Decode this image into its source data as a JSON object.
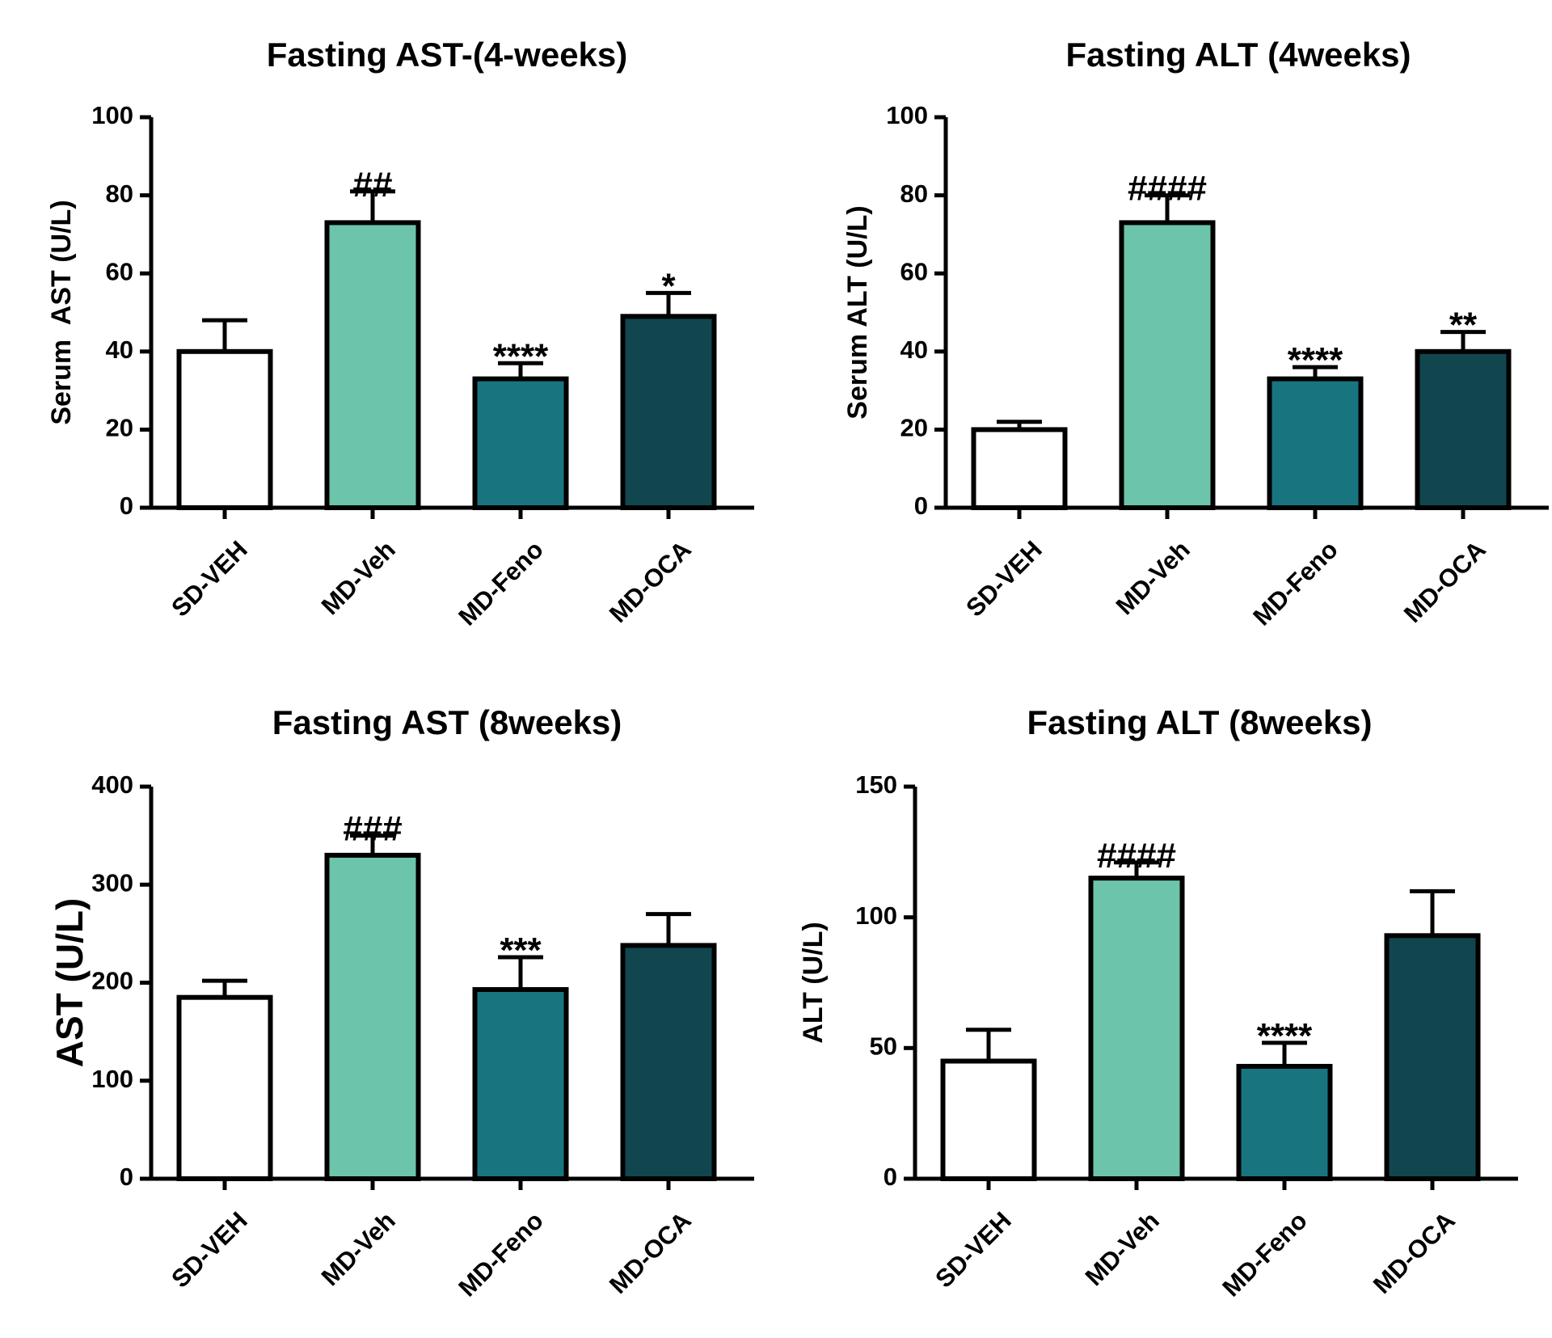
{
  "categories": [
    "SD-VEH",
    "MD-Veh",
    "MD-Feno",
    "MD-OCA"
  ],
  "bar_colors": [
    "#ffffff",
    "#6cc4aa",
    "#187580",
    "#11464f"
  ],
  "chart_data": [
    {
      "type": "bar",
      "title": "Fasting AST-(4-weeks)",
      "ylabel": "Serum  AST (U/L)",
      "xlabel": "",
      "categories": [
        "SD-VEH",
        "MD-Veh",
        "MD-Feno",
        "MD-OCA"
      ],
      "values": [
        40,
        73,
        33,
        49
      ],
      "errors": [
        8,
        8,
        4,
        6
      ],
      "annotations": [
        "",
        "##",
        "****",
        "*"
      ],
      "ylim": [
        0,
        100
      ],
      "yticks": [
        0,
        20,
        40,
        60,
        80,
        100
      ],
      "grid": false
    },
    {
      "type": "bar",
      "title": "Fasting ALT (4weeks)",
      "ylabel": "Serum ALT (U/L)",
      "xlabel": "",
      "categories": [
        "SD-VEH",
        "MD-Veh",
        "MD-Feno",
        "MD-OCA"
      ],
      "values": [
        20,
        73,
        33,
        40
      ],
      "errors": [
        2,
        7,
        3,
        5
      ],
      "annotations": [
        "",
        "####",
        "****",
        "**"
      ],
      "ylim": [
        0,
        100
      ],
      "yticks": [
        0,
        20,
        40,
        60,
        80,
        100
      ],
      "grid": false
    },
    {
      "type": "bar",
      "title": "Fasting AST (8weeks)",
      "ylabel": "AST (U/L)",
      "xlabel": "",
      "categories": [
        "SD-VEH",
        "MD-Veh",
        "MD-Feno",
        "MD-OCA"
      ],
      "values": [
        185,
        330,
        193,
        238
      ],
      "errors": [
        17,
        20,
        33,
        32
      ],
      "annotations": [
        "",
        "###",
        "***",
        ""
      ],
      "ylim": [
        0,
        400
      ],
      "yticks": [
        0,
        100,
        200,
        300,
        400
      ],
      "grid": false
    },
    {
      "type": "bar",
      "title": "Fasting ALT (8weeks)",
      "ylabel": "ALT (U/L)",
      "xlabel": "",
      "categories": [
        "SD-VEH",
        "MD-Veh",
        "MD-Feno",
        "MD-OCA"
      ],
      "values": [
        45,
        115,
        43,
        93
      ],
      "errors": [
        12,
        6,
        9,
        17
      ],
      "annotations": [
        "",
        "####",
        "****",
        ""
      ],
      "ylim": [
        0,
        150
      ],
      "yticks": [
        0,
        50,
        100,
        150
      ],
      "grid": false
    }
  ]
}
